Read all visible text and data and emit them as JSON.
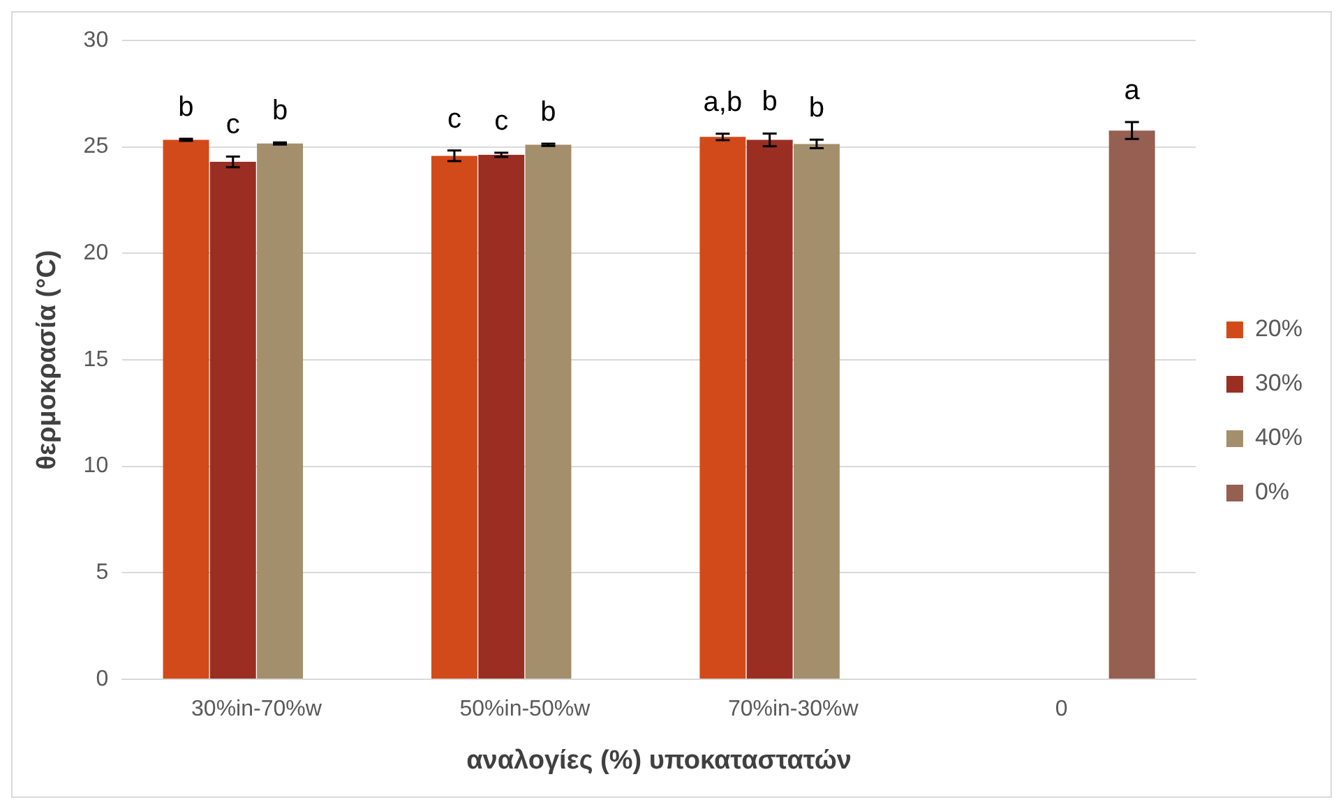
{
  "chart_data": {
    "type": "bar",
    "xlabel": "αναλογίες (%) υποκαταστατών",
    "ylabel": "θερμοκρασία (°C)",
    "categories": [
      "30%in-70%w",
      "50%in-50%w",
      "70%in-30%w",
      "0"
    ],
    "series": [
      {
        "name": "20%",
        "color": "#d34a1a",
        "values": [
          25.33,
          24.58,
          25.47,
          null
        ],
        "errors": [
          0.05,
          0.25,
          0.15,
          null
        ],
        "value_labels": [
          "b",
          "c",
          "a,b",
          null
        ]
      },
      {
        "name": "30%",
        "color": "#9b2e22",
        "values": [
          24.3,
          24.63,
          25.33,
          null
        ],
        "errors": [
          0.25,
          0.1,
          0.3,
          null
        ],
        "value_labels": [
          "c",
          "c",
          "b",
          null
        ]
      },
      {
        "name": "40%",
        "color": "#a38f6b",
        "values": [
          25.16,
          25.1,
          25.14,
          null
        ],
        "errors": [
          0.05,
          0.05,
          0.2,
          null
        ],
        "value_labels": [
          "b",
          "b",
          "b",
          null
        ]
      },
      {
        "name": "0%",
        "color": "#955f51",
        "values": [
          null,
          null,
          null,
          25.77
        ],
        "errors": [
          null,
          null,
          null,
          0.4
        ],
        "value_labels": [
          null,
          null,
          null,
          "a"
        ]
      }
    ],
    "ylim": [
      0,
      30
    ],
    "yticks": [
      0,
      5,
      10,
      15,
      20,
      25,
      30
    ],
    "grid": "y",
    "legend": "right"
  }
}
